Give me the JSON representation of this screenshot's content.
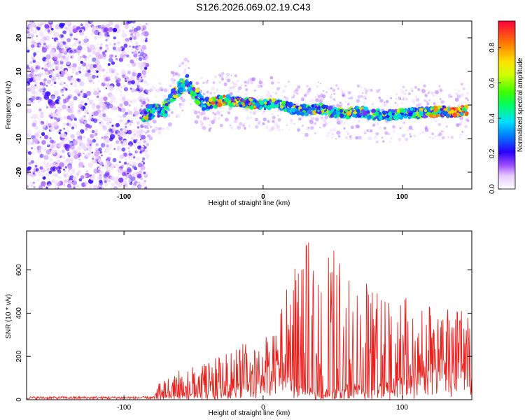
{
  "title": "S126.2026.069.02.19.C43",
  "chart_data": [
    {
      "type": "heatmap",
      "xlabel": "Height of straight line (km)",
      "ylabel": "Frequency (Hz)",
      "xlim": [
        -170,
        150
      ],
      "ylim": [
        -25,
        25
      ],
      "xticks": [
        -100,
        0,
        100
      ],
      "yticks": [
        20,
        10,
        0,
        -10,
        -20
      ],
      "noise_region_x": [
        -170,
        -87
      ],
      "ridge": {
        "x": [
          -88,
          -80,
          -70,
          -65,
          -60,
          -55,
          -50,
          -45,
          -40,
          -30,
          -20,
          -10,
          0,
          10,
          20,
          30,
          40,
          50,
          60,
          70,
          80,
          90,
          100,
          110,
          120,
          130,
          140,
          148
        ],
        "y": [
          -3,
          -2,
          -1,
          3,
          5,
          7,
          4,
          1,
          0,
          1.5,
          1,
          0.5,
          0,
          0.5,
          -1,
          -1.5,
          -1,
          -2,
          -2.5,
          -2,
          -3,
          -3,
          -2.5,
          -2.5,
          -2,
          -2,
          -2,
          -1.5
        ]
      },
      "colorbar": {
        "label": "Normalized spectral amplitude",
        "ticks": [
          0.0,
          0.2,
          0.4,
          0.6,
          0.8
        ],
        "range": [
          0,
          0.95
        ]
      }
    },
    {
      "type": "line",
      "xlabel": "Height of straight line (km)",
      "ylabel": "SNR (10 * v/v)",
      "xlim": [
        -170,
        150
      ],
      "ylim": [
        0,
        780
      ],
      "xticks": [
        -100,
        0,
        100
      ],
      "yticks": [
        0,
        200,
        400,
        600
      ],
      "envelope": {
        "x": [
          -170,
          -78,
          -76,
          -60,
          -50,
          -40,
          -30,
          -20,
          -10,
          -5,
          0,
          5,
          10,
          14,
          20,
          30,
          40,
          50,
          60,
          70,
          80,
          90,
          100,
          110,
          120,
          130,
          140,
          150
        ],
        "low": [
          5,
          5,
          20,
          20,
          30,
          40,
          60,
          70,
          80,
          90,
          100,
          80,
          100,
          120,
          110,
          60,
          50,
          40,
          50,
          60,
          80,
          90,
          100,
          120,
          140,
          180,
          200,
          220
        ],
        "high": [
          15,
          15,
          70,
          140,
          170,
          180,
          200,
          240,
          280,
          250,
          320,
          260,
          380,
          480,
          560,
          740,
          700,
          720,
          620,
          560,
          520,
          500,
          480,
          450,
          440,
          420,
          420,
          400
        ]
      },
      "color": "#e8211d"
    }
  ]
}
